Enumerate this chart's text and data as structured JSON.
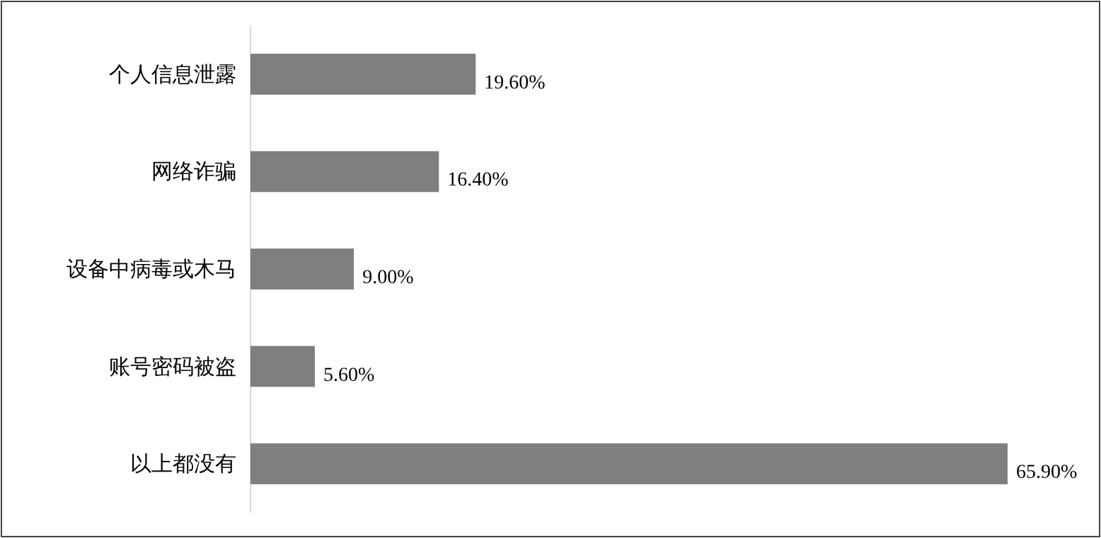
{
  "chart_data": {
    "type": "bar",
    "orientation": "horizontal",
    "categories": [
      "个人信息泄露",
      "网络诈骗",
      "设备中病毒或木马",
      "账号密码被盗",
      "以上都没有"
    ],
    "values": [
      19.6,
      16.4,
      9.0,
      5.6,
      65.9
    ],
    "value_labels": [
      "19.60%",
      "16.40%",
      "9.00%",
      "5.60%",
      "65.90%"
    ],
    "color": "#7f7f7f"
  }
}
